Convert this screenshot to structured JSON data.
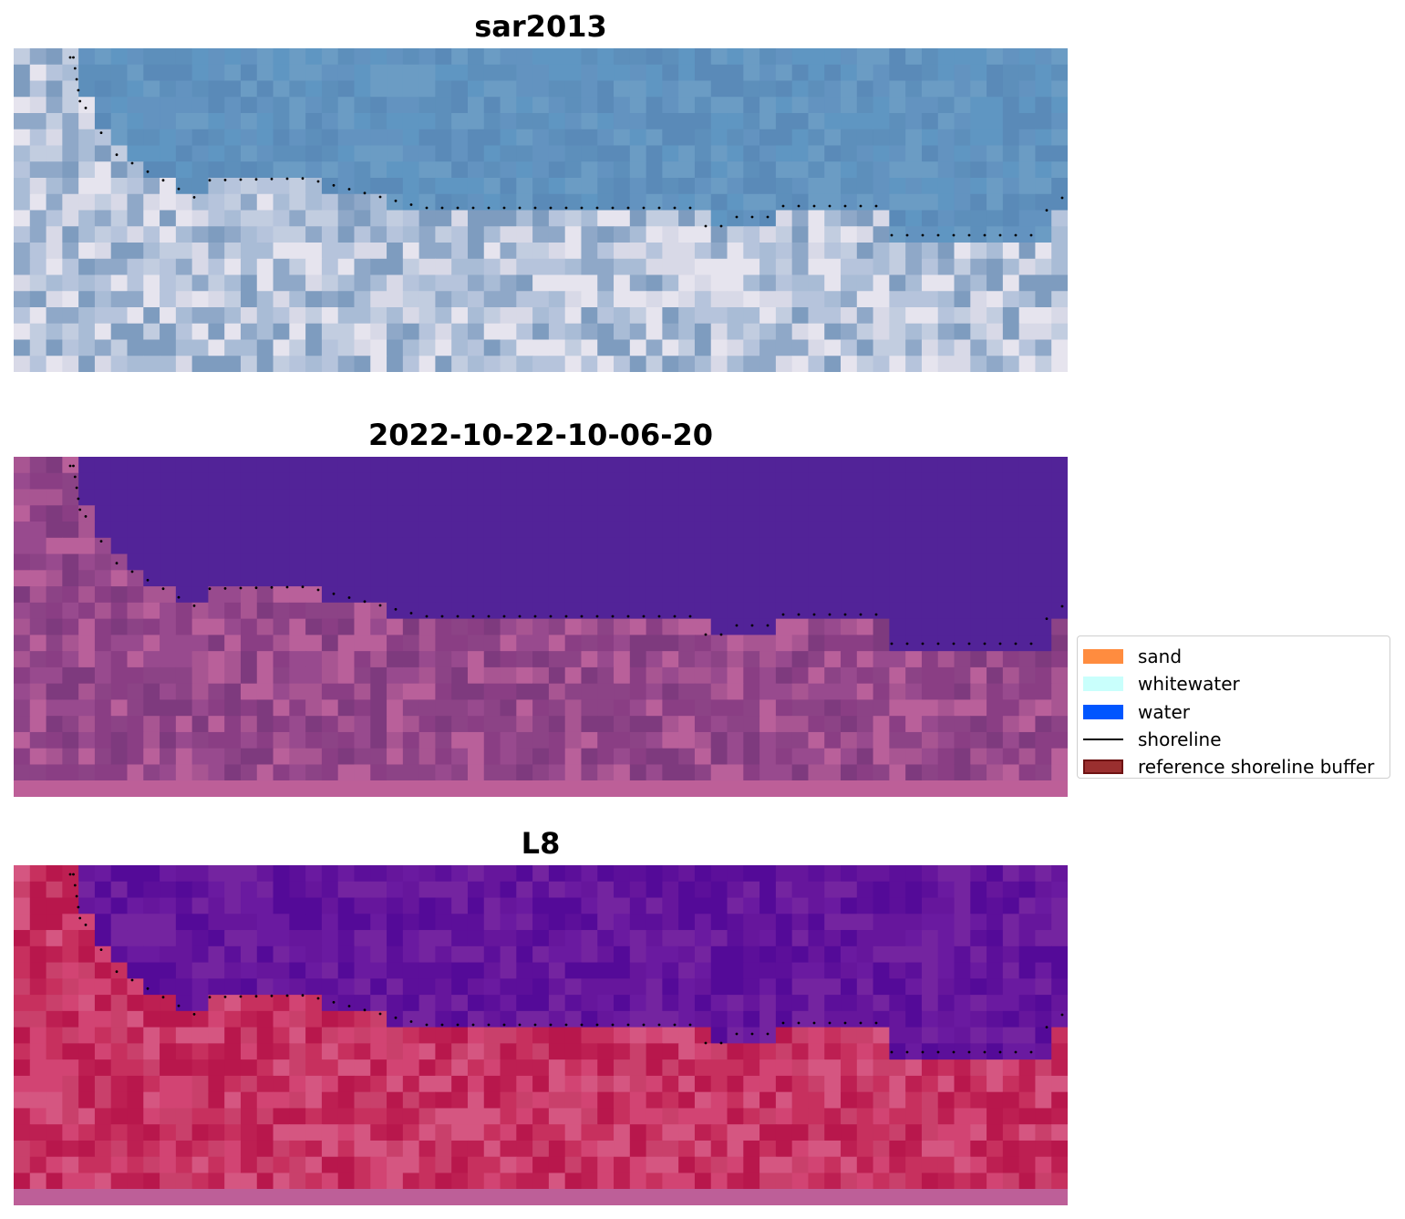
{
  "figure": {
    "panels": [
      {
        "id": "sar2013",
        "title": "sar2013",
        "palette": {
          "water_colors": [
            "#5d8fbb",
            "#6393c0",
            "#5a8ab8",
            "#6b9cc4",
            "#5f96c2"
          ],
          "land_colors": [
            "#a9bcd6",
            "#c2cde0",
            "#8fa8c8",
            "#d8d9e7",
            "#b6c4dc",
            "#7e9cbf",
            "#e6e4ee"
          ]
        }
      },
      {
        "id": "classified",
        "title": "2022-10-22-10-06-20",
        "palette": {
          "water_colors": [
            "#522398"
          ],
          "land_colors": [
            "#8a3e84",
            "#984a8e",
            "#7e3a7e",
            "#a85592",
            "#b9609a",
            "#8c4386"
          ]
        }
      },
      {
        "id": "L8",
        "title": "L8",
        "palette": {
          "water_colors": [
            "#66169c",
            "#6a1aa0",
            "#5c0f9a",
            "#7424a0",
            "#540a98"
          ],
          "land_colors": [
            "#c7305e",
            "#d24473",
            "#bd1f52",
            "#c9406b",
            "#b8174c",
            "#d55681"
          ]
        }
      }
    ],
    "legend": {
      "items": [
        {
          "label": "sand",
          "kind": "patch",
          "color": "#ff8c3f"
        },
        {
          "label": "whitewater",
          "kind": "patch",
          "color": "#c9fffc"
        },
        {
          "label": "water",
          "kind": "patch",
          "color": "#0056ff"
        },
        {
          "label": "shoreline",
          "kind": "line",
          "color": "#000000"
        },
        {
          "label": "reference shoreline buffer",
          "kind": "patch",
          "color": "#9a2f2f",
          "edge": "#6e1313"
        }
      ]
    }
  }
}
